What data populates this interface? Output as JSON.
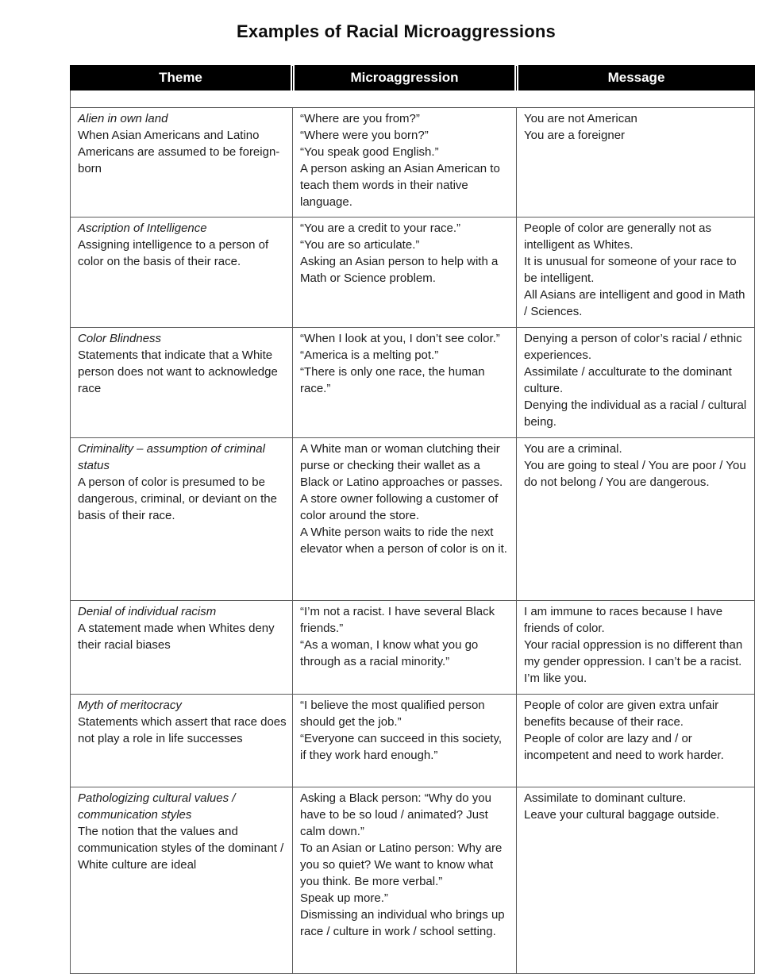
{
  "title": "Examples of Racial Microaggressions",
  "colors": {
    "header_bg": "#000000",
    "header_text": "#ffffff",
    "border": "#5c5c5c",
    "text": "#1c1c1c"
  },
  "table": {
    "headers": [
      "Theme",
      "Microaggression",
      "Message"
    ],
    "rows": [
      {
        "theme": {
          "title": "Alien in own land",
          "description": "When Asian Americans and Latino Americans are assumed to be foreign-born"
        },
        "microaggression": [
          "“Where are you from?”",
          "“Where were you born?”",
          "“You speak good English.”",
          "A person asking an Asian American to teach them words in their native language."
        ],
        "message": [
          "You are not American",
          "You are a foreigner"
        ]
      },
      {
        "theme": {
          "title": "Ascription of Intelligence",
          "description": "Assigning intelligence to a person of color on the basis of their race."
        },
        "microaggression": [
          "“You are a credit to your race.”",
          "“You are so articulate.”",
          "Asking an Asian person to help with a Math or Science problem."
        ],
        "message": [
          "People of color are generally not as intelligent as Whites.",
          "It is unusual for someone of your race to be intelligent.",
          "All Asians are intelligent and good in Math / Sciences."
        ]
      },
      {
        "theme": {
          "title": "Color Blindness",
          "description": "Statements that indicate that a White person does not want to acknowledge race"
        },
        "microaggression": [
          "“When I look at you, I don’t see color.”",
          "“America is a melting pot.”",
          "“There is only one race, the human race.”"
        ],
        "message": [
          "Denying a person of color’s racial / ethnic experiences.",
          "Assimilate / acculturate to the dominant culture.",
          "Denying the individual as a racial / cultural being."
        ]
      },
      {
        "theme": {
          "title": "Criminality – assumption of criminal status",
          "description": "A person of color is presumed to be dangerous, criminal, or deviant on the basis of their race."
        },
        "microaggression": [
          "A White man or woman clutching their purse or checking their wallet as a Black or Latino approaches or passes.",
          "A store owner following a customer of color around the store.",
          "A White person waits to ride the next elevator when a person of color is on it."
        ],
        "message": [
          "You are a criminal.",
          "You are going to steal / You are poor / You do not belong / You are dangerous."
        ]
      },
      {
        "theme": {
          "title": "Denial of individual racism",
          "description": "A statement made when Whites deny their racial biases"
        },
        "microaggression": [
          "“I’m not a racist. I have several Black friends.”",
          "“As a woman, I know what you go through as a racial minority.”"
        ],
        "message": [
          "I am immune to races because I have friends of color.",
          "Your racial oppression is no different than my gender oppression. I can’t be a racist. I’m like you."
        ]
      },
      {
        "theme": {
          "title": "Myth of meritocracy",
          "description": "Statements which assert that race does not play a role in life successes"
        },
        "microaggression": [
          "“I believe the most qualified person should get the job.”",
          "“Everyone can succeed in this society, if they work hard enough.”"
        ],
        "message": [
          "People of color are given extra unfair benefits because of their race.",
          "People of color are lazy and / or incompetent and need to work harder."
        ]
      },
      {
        "theme": {
          "title": "Pathologizing cultural values / communication styles",
          "description": "The notion that the values and communication styles of the dominant / White culture are ideal"
        },
        "microaggression": [
          "Asking a Black person: “Why do you have to be so loud / animated? Just calm down.”",
          "To an Asian or Latino person: Why are you so quiet? We want to know what you think. Be more verbal.”",
          "Speak up more.”",
          "Dismissing an individual who brings up race / culture in work / school setting."
        ],
        "message": [
          "Assimilate to dominant culture.",
          "Leave your cultural baggage outside."
        ]
      }
    ]
  }
}
